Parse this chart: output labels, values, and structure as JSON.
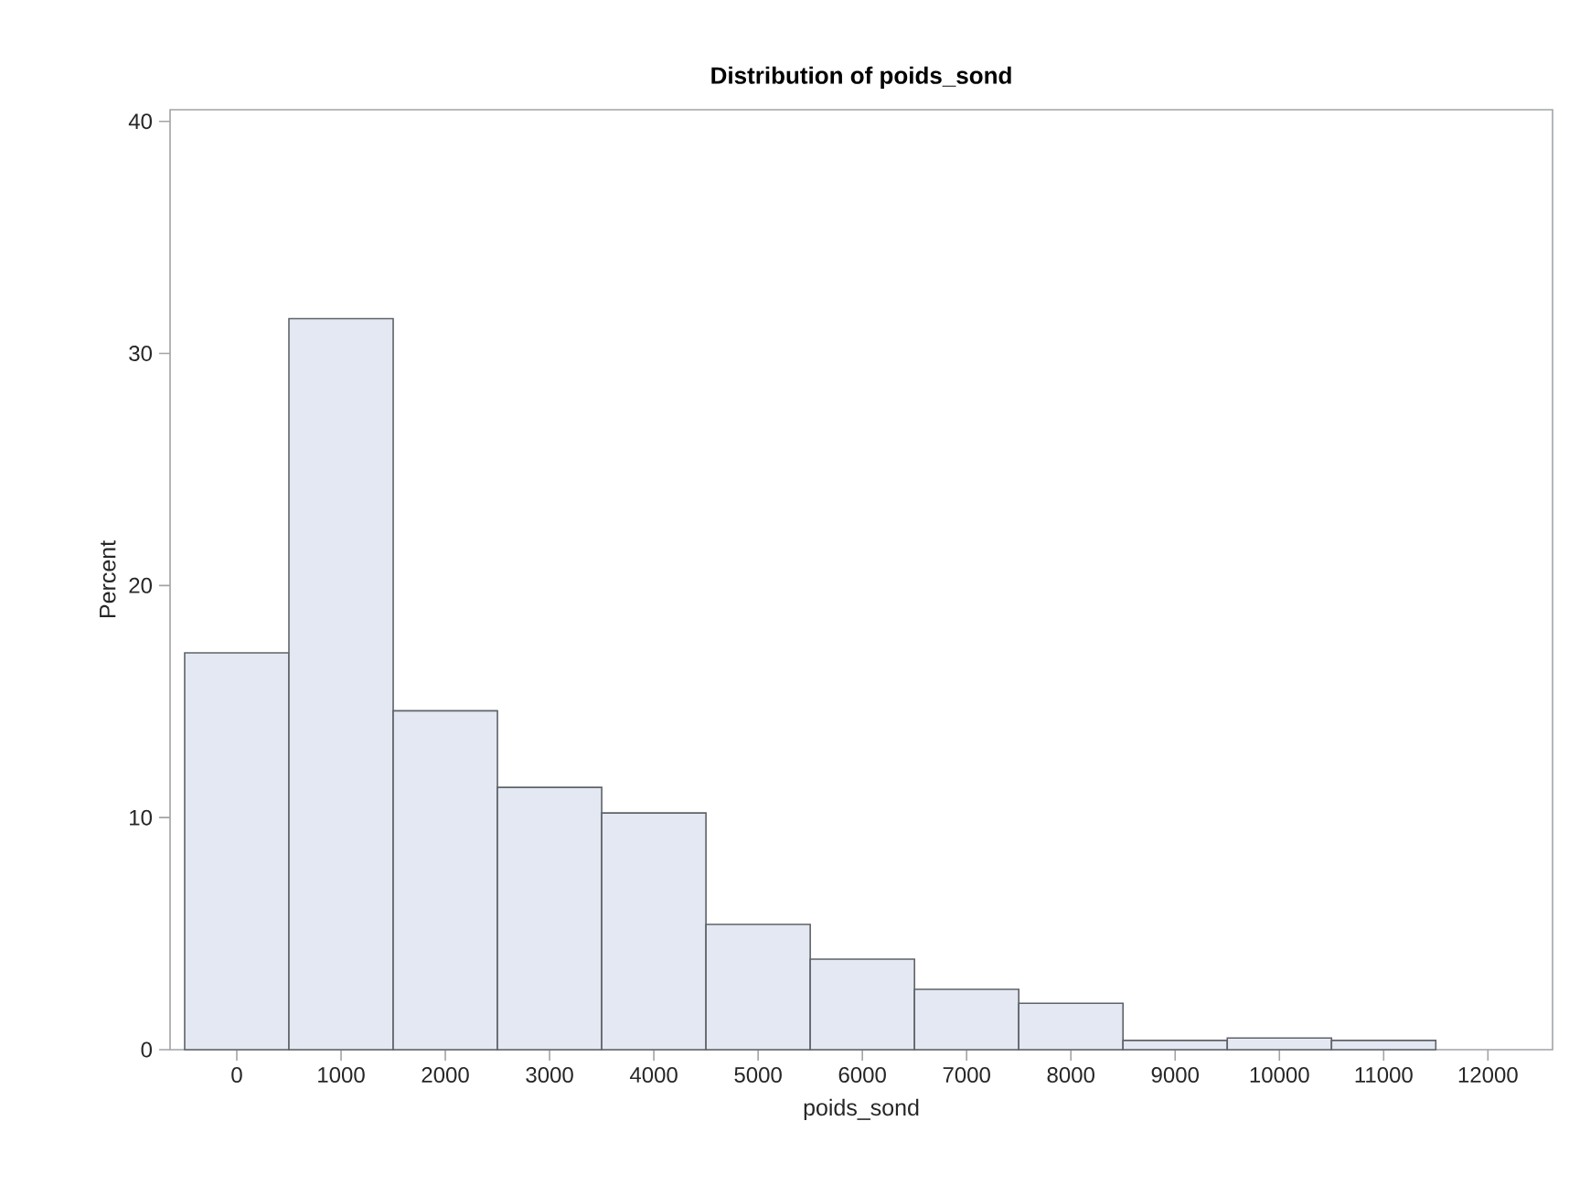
{
  "chart_data": {
    "type": "histogram",
    "title": "Distribution of poids_sond",
    "xlabel": "poids_sond",
    "ylabel": "Percent",
    "bins": [
      -500,
      500,
      1500,
      2500,
      3500,
      4500,
      5500,
      6500,
      7500,
      8500,
      9500,
      10500,
      11500
    ],
    "values": [
      17.1,
      31.5,
      14.6,
      11.3,
      10.2,
      5.4,
      3.9,
      2.6,
      2.0,
      0.4,
      0.5,
      0.4
    ],
    "color": "#e3e8f2",
    "xlim": [
      -640,
      12620
    ],
    "ylim": [
      0,
      40.5
    ],
    "xticks": [
      0,
      1000,
      2000,
      3000,
      4000,
      5000,
      6000,
      7000,
      8000,
      9000,
      10000,
      11000,
      12000
    ],
    "yticks": [
      0,
      10,
      20,
      30,
      40
    ],
    "grid": false
  }
}
